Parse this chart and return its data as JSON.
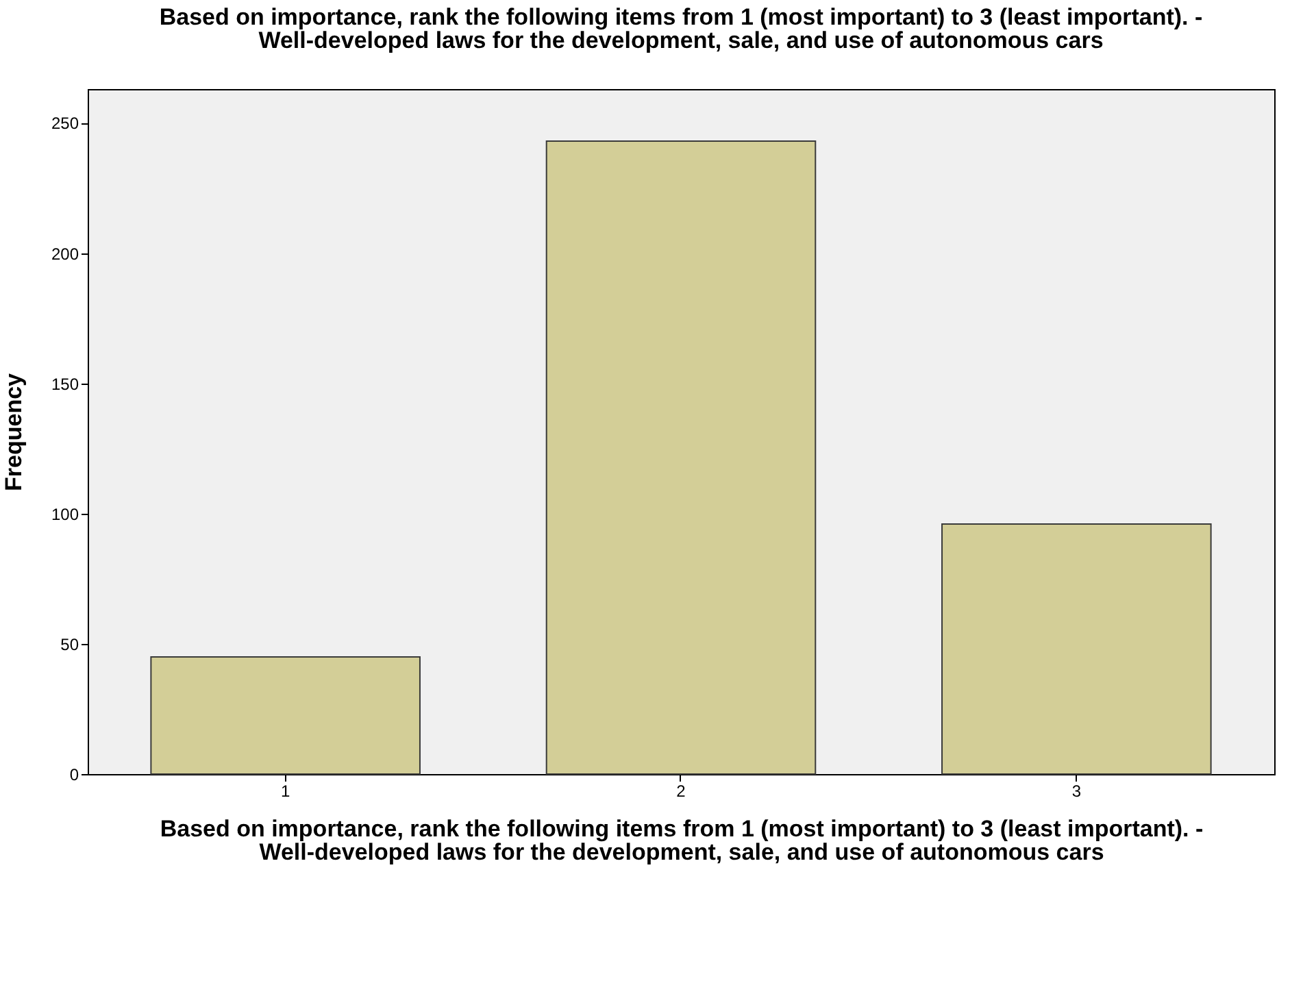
{
  "chart_data": {
    "type": "bar",
    "title": "Based on importance, rank the following items from 1 (most important) to 3 (least important). - Well-developed laws for the development, sale, and use of autonomous cars",
    "xlabel": "Based on importance, rank the following items from 1 (most important) to 3 (least important). - Well-developed laws for the development, sale, and use of autonomous cars",
    "ylabel": "Frequency",
    "categories": [
      "1",
      "2",
      "3"
    ],
    "values": [
      45,
      243,
      96
    ],
    "color": "#d3ce97",
    "ylim": [
      0,
      263
    ],
    "yticks": [
      0,
      50,
      100,
      150,
      200,
      250
    ],
    "grid": false
  }
}
